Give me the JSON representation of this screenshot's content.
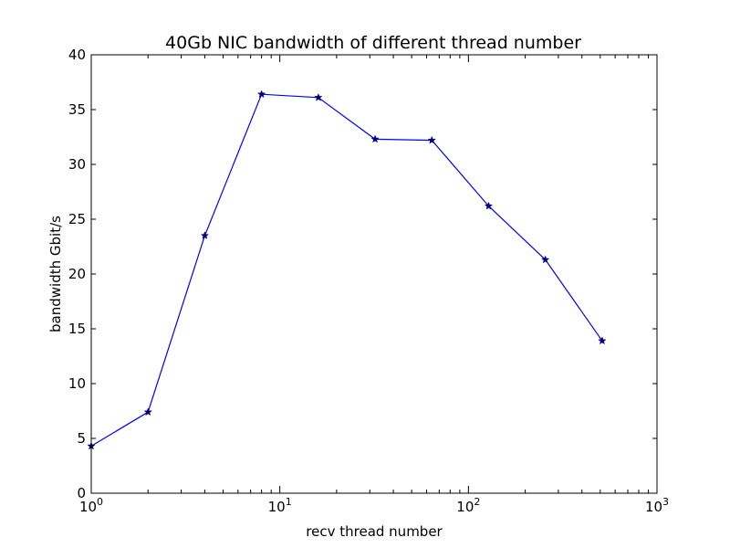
{
  "chart_data": {
    "type": "line",
    "title": "40Gb NIC bandwidth of different thread number",
    "xlabel": "recv thread number",
    "ylabel": "bandwidth Gbit/s",
    "xscale": "log",
    "xlim": [
      1,
      1000
    ],
    "ylim": [
      0,
      40
    ],
    "x_ticks": [
      {
        "base": "10",
        "exp": "0",
        "value": 1
      },
      {
        "base": "10",
        "exp": "1",
        "value": 10
      },
      {
        "base": "10",
        "exp": "2",
        "value": 100
      },
      {
        "base": "10",
        "exp": "3",
        "value": 1000
      }
    ],
    "y_ticks": [
      "0",
      "5",
      "10",
      "15",
      "20",
      "25",
      "30",
      "35",
      "40"
    ],
    "grid": false,
    "marker": "star",
    "line_color": "#0000ff",
    "marker_color": "#000080",
    "series": [
      {
        "x": [
          1,
          2,
          4,
          8,
          16,
          32,
          64,
          128,
          256,
          512
        ],
        "y": [
          4.3,
          7.4,
          23.5,
          36.4,
          36.1,
          32.3,
          32.2,
          26.2,
          21.3,
          13.9
        ]
      }
    ]
  }
}
